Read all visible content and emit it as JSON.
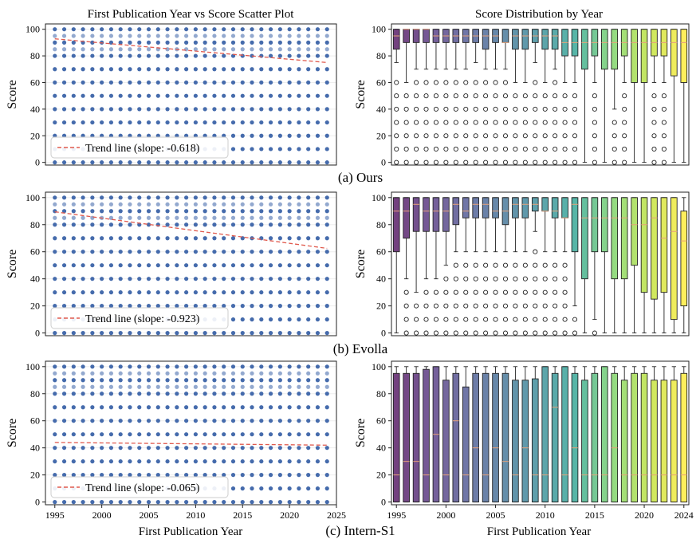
{
  "titles": {
    "scatter": "First Publication Year vs Score Scatter Plot",
    "box": "Score Distribution by Year"
  },
  "labels": {
    "y": "Score",
    "x": "First Publication Year"
  },
  "colors": {
    "point": "#3b63a8",
    "trend": "#e05a4e",
    "median": "#e8a27a",
    "viridis": [
      "#440154",
      "#482777",
      "#3f4a8a",
      "#31678e",
      "#26838f",
      "#1f9d8a",
      "#6cce5a",
      "#b6de2b",
      "#fee825"
    ]
  },
  "chart_data": [
    {
      "panel": "(a) Ours",
      "scatter": {
        "type": "scatter",
        "xlim": [
          1994,
          2025
        ],
        "ylim": [
          -2,
          104
        ],
        "x_range": [
          1995,
          2024
        ],
        "score_levels": [
          0,
          10,
          20,
          30,
          40,
          50,
          60,
          70,
          80,
          85,
          90,
          95,
          100
        ],
        "trend": {
          "slope": -0.618,
          "label": "Trend line (slope: -0.618)",
          "y1995": 92.8,
          "y2024": 75
        },
        "legend": "lower-left"
      },
      "box": {
        "type": "box",
        "ylim": [
          -2,
          104
        ],
        "medians": [
          95,
          100,
          100,
          100,
          95,
          95,
          95,
          95,
          95,
          95,
          95,
          90,
          95,
          95,
          95,
          95,
          95,
          90,
          90,
          90,
          90,
          90,
          90,
          90,
          90,
          90,
          90,
          90,
          90,
          90
        ],
        "q1": [
          85,
          90,
          90,
          90,
          90,
          90,
          90,
          90,
          90,
          85,
          90,
          90,
          85,
          85,
          90,
          85,
          85,
          80,
          80,
          70,
          80,
          70,
          70,
          80,
          60,
          60,
          80,
          80,
          65,
          60
        ],
        "q3": [
          100,
          100,
          100,
          100,
          100,
          100,
          100,
          100,
          100,
          100,
          100,
          100,
          100,
          100,
          100,
          100,
          100,
          100,
          100,
          100,
          100,
          100,
          100,
          100,
          100,
          100,
          100,
          100,
          100,
          100
        ],
        "lo": [
          75,
          60,
          70,
          70,
          70,
          70,
          70,
          70,
          75,
          70,
          70,
          70,
          60,
          60,
          75,
          60,
          70,
          60,
          60,
          0,
          60,
          0,
          40,
          60,
          0,
          0,
          60,
          60,
          0,
          0
        ],
        "hi": [
          100,
          100,
          100,
          100,
          100,
          100,
          100,
          100,
          100,
          100,
          100,
          100,
          100,
          100,
          100,
          100,
          100,
          100,
          100,
          100,
          100,
          100,
          100,
          100,
          100,
          100,
          100,
          100,
          100,
          100
        ]
      }
    },
    {
      "panel": "(b) Evolla",
      "scatter": {
        "type": "scatter",
        "xlim": [
          1994,
          2025
        ],
        "ylim": [
          -2,
          104
        ],
        "x_range": [
          1995,
          2024
        ],
        "score_levels": [
          0,
          10,
          20,
          30,
          40,
          50,
          60,
          70,
          80,
          85,
          90,
          95,
          100
        ],
        "trend": {
          "slope": -0.923,
          "label": "Trend line (slope: -0.923)",
          "y1995": 89.5,
          "y2024": 62.5
        },
        "legend": "lower-left"
      },
      "box": {
        "type": "box",
        "ylim": [
          -2,
          104
        ],
        "medians": [
          90,
          90,
          95,
          90,
          90,
          90,
          95,
          90,
          95,
          95,
          90,
          90,
          95,
          95,
          95,
          90,
          90,
          85,
          95,
          85,
          85,
          85,
          85,
          85,
          80,
          80,
          85,
          70,
          75,
          68
        ],
        "q1": [
          60,
          70,
          75,
          75,
          75,
          75,
          80,
          85,
          85,
          85,
          85,
          80,
          85,
          85,
          90,
          90,
          85,
          85,
          60,
          40,
          60,
          60,
          40,
          40,
          50,
          30,
          25,
          30,
          10,
          20
        ],
        "q3": [
          100,
          100,
          100,
          100,
          100,
          100,
          100,
          100,
          100,
          100,
          100,
          100,
          100,
          100,
          100,
          100,
          100,
          100,
          100,
          100,
          100,
          100,
          100,
          100,
          100,
          100,
          100,
          100,
          100,
          90
        ],
        "lo": [
          0,
          40,
          30,
          40,
          40,
          50,
          60,
          60,
          60,
          60,
          60,
          60,
          60,
          60,
          75,
          60,
          60,
          60,
          20,
          0,
          10,
          0,
          0,
          0,
          0,
          0,
          0,
          0,
          0,
          0
        ],
        "hi": [
          100,
          100,
          100,
          100,
          100,
          100,
          100,
          100,
          100,
          100,
          100,
          100,
          100,
          100,
          100,
          100,
          100,
          100,
          100,
          100,
          100,
          100,
          100,
          100,
          100,
          100,
          100,
          100,
          100,
          100
        ]
      }
    },
    {
      "panel": "(c) Intern-S1",
      "scatter": {
        "type": "scatter",
        "xlim": [
          1994,
          2025
        ],
        "ylim": [
          -2,
          104
        ],
        "x_range": [
          1995,
          2024
        ],
        "score_levels": [
          0,
          10,
          20,
          30,
          40,
          50,
          60,
          70,
          80,
          85,
          90,
          95,
          100
        ],
        "trend": {
          "slope": -0.065,
          "label": "Trend line (slope: -0.065)",
          "y1995": 44,
          "y2024": 42
        },
        "legend": "lower-left"
      },
      "box": {
        "type": "box",
        "ylim": [
          -2,
          104
        ],
        "medians": [
          20,
          30,
          30,
          20,
          50,
          20,
          60,
          20,
          40,
          20,
          40,
          30,
          20,
          40,
          20,
          20,
          70,
          20,
          40,
          20,
          20,
          20,
          40,
          20,
          20,
          20,
          20,
          20,
          20,
          20
        ],
        "q1": [
          0,
          0,
          0,
          0,
          0,
          0,
          0,
          0,
          0,
          0,
          0,
          0,
          0,
          0,
          0,
          0,
          0,
          0,
          0,
          0,
          0,
          0,
          0,
          0,
          0,
          0,
          0,
          0,
          0,
          0
        ],
        "q3": [
          95,
          95,
          95,
          98,
          100,
          90,
          95,
          85,
          95,
          95,
          95,
          95,
          90,
          90,
          91,
          100,
          95,
          100,
          95,
          90,
          95,
          100,
          95,
          90,
          95,
          95,
          90,
          90,
          90,
          95
        ],
        "lo": [
          0,
          0,
          0,
          0,
          0,
          0,
          0,
          0,
          0,
          0,
          0,
          0,
          0,
          0,
          0,
          0,
          0,
          0,
          0,
          0,
          0,
          0,
          0,
          0,
          0,
          0,
          0,
          0,
          0,
          0
        ],
        "hi": [
          100,
          100,
          100,
          100,
          100,
          100,
          100,
          100,
          100,
          100,
          100,
          100,
          100,
          100,
          100,
          100,
          100,
          100,
          100,
          100,
          100,
          100,
          100,
          100,
          100,
          100,
          100,
          100,
          100,
          100
        ]
      }
    }
  ],
  "axes": {
    "y_ticks": [
      0,
      20,
      40,
      60,
      80,
      100
    ],
    "x_ticks": [
      1995,
      2000,
      2005,
      2010,
      2015,
      2020,
      2025
    ],
    "box_x_ticks": [
      1995,
      2000,
      2005,
      2010,
      2015,
      2020,
      2024
    ]
  }
}
